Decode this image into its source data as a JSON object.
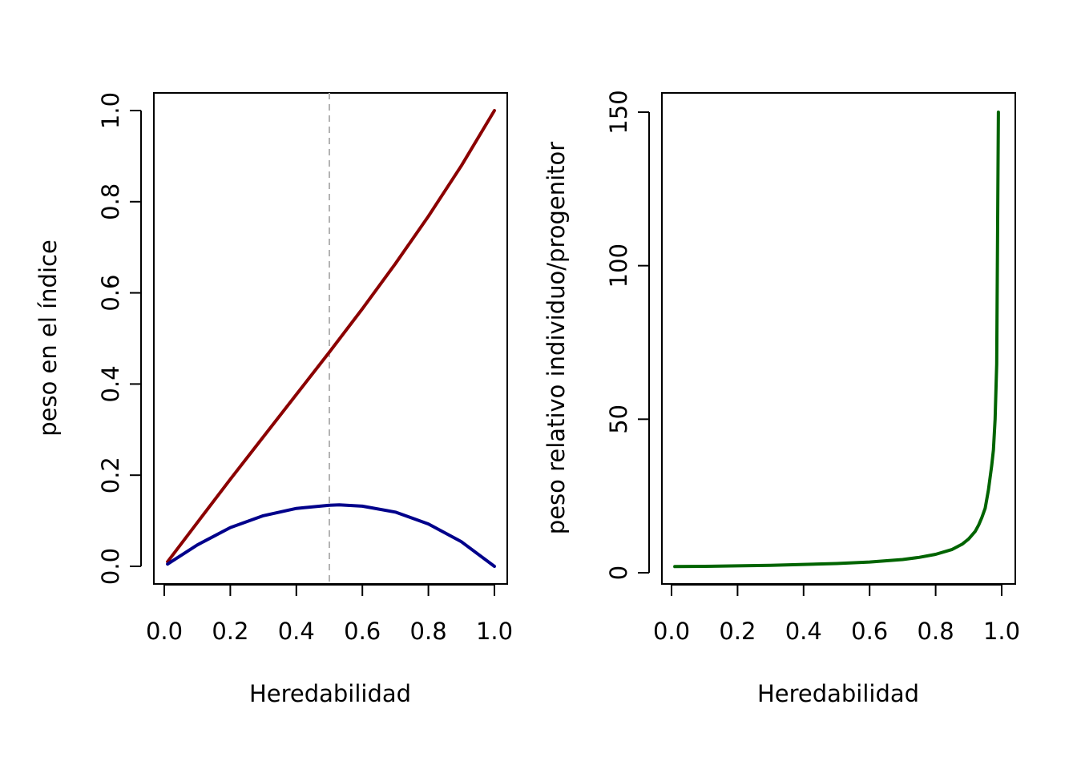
{
  "chart_data": [
    {
      "type": "line",
      "title": "",
      "xlabel": "Heredabilidad",
      "ylabel": "peso en el índice",
      "xlim": [
        0,
        1
      ],
      "ylim": [
        0,
        1
      ],
      "x_ticks": [
        "0.0",
        "0.2",
        "0.4",
        "0.6",
        "0.8",
        "1.0"
      ],
      "y_ticks": [
        "0.0",
        "0.2",
        "0.4",
        "0.6",
        "0.8",
        "1.0"
      ],
      "vline": {
        "x": 0.5,
        "color": "#b3b3b3",
        "style": "dashed"
      },
      "series": [
        {
          "color": "#8b0000",
          "x": [
            0.01,
            0.1,
            0.2,
            0.3,
            0.4,
            0.5,
            0.6,
            0.7,
            0.8,
            0.9,
            1.0
          ],
          "y": [
            0.01,
            0.096,
            0.191,
            0.284,
            0.377,
            0.47,
            0.565,
            0.664,
            0.768,
            0.879,
            1.0
          ]
        },
        {
          "color": "#00008b",
          "x": [
            0.01,
            0.1,
            0.2,
            0.3,
            0.4,
            0.5,
            0.53,
            0.6,
            0.7,
            0.8,
            0.9,
            1.0
          ],
          "y": [
            0.005,
            0.047,
            0.085,
            0.111,
            0.127,
            0.134,
            0.135,
            0.132,
            0.119,
            0.093,
            0.054,
            0.0
          ]
        }
      ],
      "grid": false
    },
    {
      "type": "line",
      "title": "",
      "xlabel": "Heredabilidad",
      "ylabel": "peso relativo individuo/progenitor",
      "xlim": [
        0,
        1
      ],
      "ylim": [
        0,
        150
      ],
      "x_ticks": [
        "0.0",
        "0.2",
        "0.4",
        "0.6",
        "0.8",
        "1.0"
      ],
      "y_ticks": [
        "0",
        "50",
        "100",
        "150"
      ],
      "series": [
        {
          "color": "#006400",
          "x": [
            0.01,
            0.1,
            0.2,
            0.3,
            0.4,
            0.5,
            0.6,
            0.7,
            0.75,
            0.8,
            0.85,
            0.88,
            0.9,
            0.92,
            0.93,
            0.94,
            0.95,
            0.96,
            0.97,
            0.975,
            0.98,
            0.985,
            0.99
          ],
          "y": [
            2.0,
            2.1,
            2.25,
            2.4,
            2.7,
            3.0,
            3.5,
            4.3,
            5.0,
            6.0,
            7.6,
            9.3,
            11,
            13.5,
            15.5,
            18,
            21,
            27,
            35,
            40,
            50,
            68,
            150
          ]
        }
      ],
      "grid": false
    }
  ]
}
